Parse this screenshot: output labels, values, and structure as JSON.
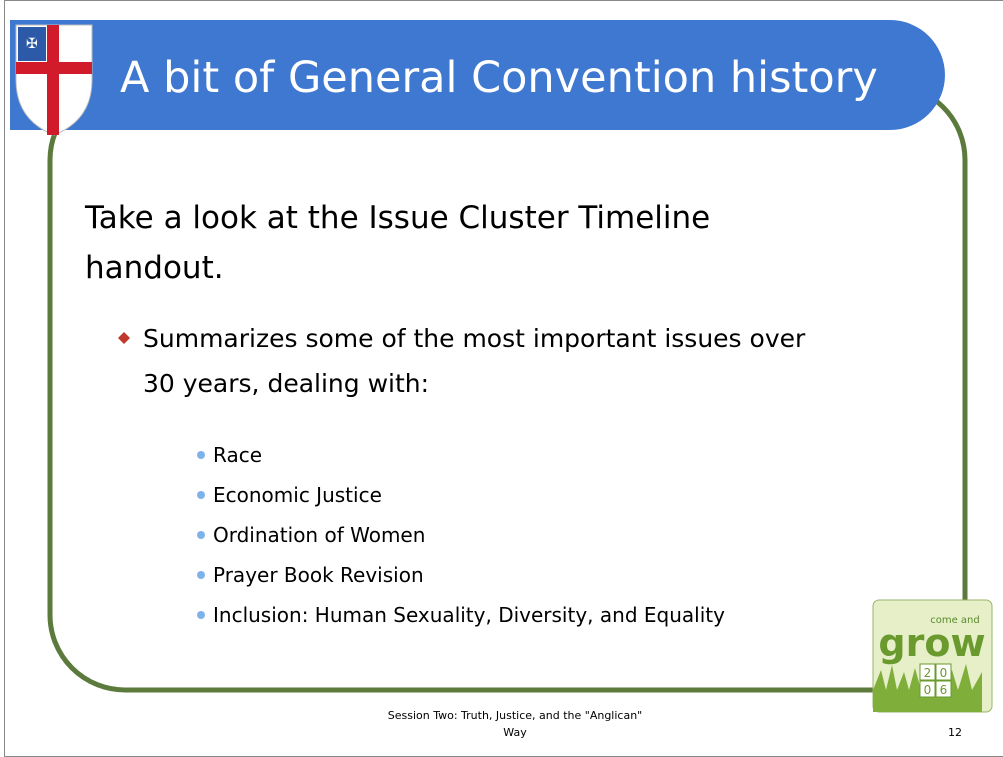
{
  "slide": {
    "title": "A bit of General Convention history",
    "body": {
      "lines": [
        "Take a look at the Issue Cluster Timeline",
        "handout."
      ],
      "bullet": {
        "lines": [
          "Summarizes some of the most important issues over",
          "30 years, dealing with:"
        ],
        "items": [
          "Race",
          "Economic Justice",
          "Ordination of Women",
          "Prayer Book Revision",
          "Inclusion: Human Sexuality, Diversity, and Equality"
        ]
      }
    },
    "footer": {
      "lines": [
        "Session Two: Truth, Justice, and the \"Anglican\"",
        "Way"
      ]
    },
    "slide_number": "12",
    "logo": {
      "top": "come and",
      "word": "grow",
      "year": [
        "2",
        "0",
        "0",
        "6"
      ]
    }
  }
}
